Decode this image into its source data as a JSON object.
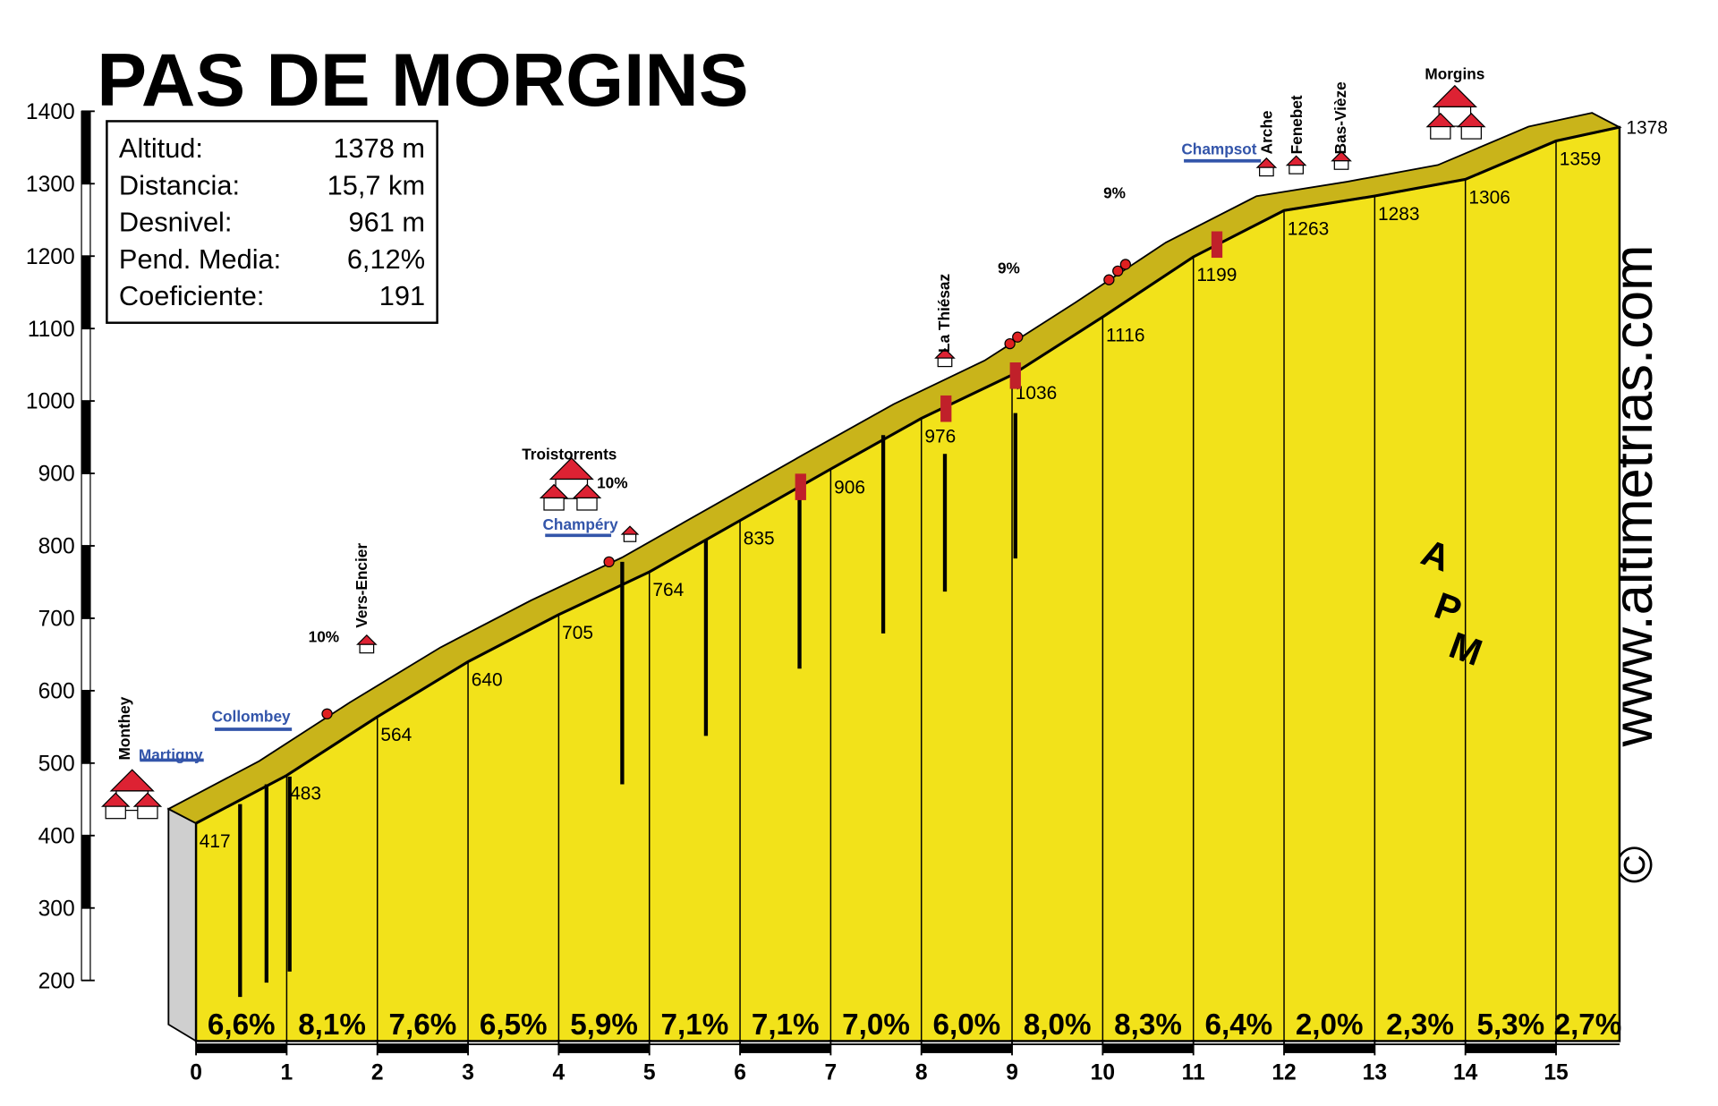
{
  "chart_data": {
    "type": "area",
    "title": "PAS DE MORGINS",
    "stats": [
      {
        "label": "Altitud:",
        "value": "1378 m"
      },
      {
        "label": "Distancia:",
        "value": "15,7 km"
      },
      {
        "label": "Desnivel:",
        "value": "961 m"
      },
      {
        "label": "Pend. Media:",
        "value": "6,12%"
      },
      {
        "label": "Coeficiente:",
        "value": "191"
      }
    ],
    "x": [
      0,
      1,
      2,
      3,
      4,
      5,
      6,
      7,
      8,
      9,
      10,
      11,
      12,
      13,
      14,
      15,
      15.7
    ],
    "values": [
      417,
      483,
      564,
      640,
      705,
      764,
      835,
      906,
      976,
      1036,
      1116,
      1199,
      1263,
      1283,
      1306,
      1359,
      1378
    ],
    "color": "#f2e21a",
    "grades": {
      "values": [
        6.6,
        8.1,
        7.6,
        6.5,
        5.9,
        7.1,
        7.1,
        7.0,
        6.0,
        8.0,
        8.3,
        6.4,
        2.0,
        2.3,
        5.3,
        2.7
      ],
      "value_labels": [
        "6,6%",
        "8,1%",
        "7,6%",
        "6,5%",
        "5,9%",
        "7,1%",
        "7,1%",
        "7,0%",
        "6,0%",
        "8,0%",
        "8,3%",
        "6,4%",
        "2,0%",
        "2,3%",
        "5,3%",
        "2,7%"
      ]
    },
    "xlim": [
      0,
      15.7
    ],
    "xticks": [
      0,
      1,
      2,
      3,
      4,
      5,
      6,
      7,
      8,
      9,
      10,
      11,
      12,
      13,
      14,
      15
    ],
    "ylim": [
      200,
      1400
    ],
    "yticks": [
      200,
      300,
      400,
      500,
      600,
      700,
      800,
      900,
      1000,
      1100,
      1200,
      1300,
      1400
    ],
    "annotations": [
      "Monthey",
      "Martigny",
      "Collombey",
      "10%",
      "Vers-Encier",
      "Troistorrents",
      "10%",
      "Champéry",
      "La Thiésaz",
      "9%",
      "9%",
      "Champsot",
      "Arche",
      "Fenebet",
      "Bas-Vièze",
      "Morgins"
    ],
    "credit": "www.altimetrias.com",
    "copyright": "©",
    "logo_letters": [
      "A",
      "P",
      "M"
    ]
  }
}
